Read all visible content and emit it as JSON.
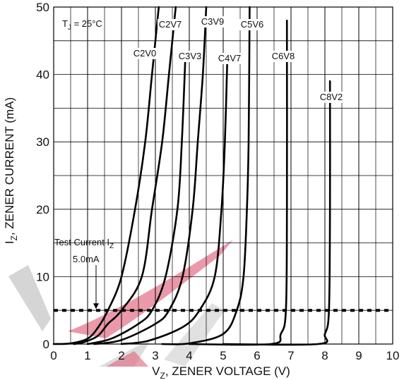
{
  "chart_data": {
    "type": "line",
    "xlabel": "V",
    "xlabel_sub": "Z",
    "xlabel_rest": ", ZENER VOLTAGE (V)",
    "ylabel": "I",
    "ylabel_sub": "Z",
    "ylabel_rest": ", ZENER CURRENT (mA)",
    "xlim": [
      0,
      10
    ],
    "ylim": [
      0,
      50
    ],
    "x_ticks": [
      "0",
      "1",
      "2",
      "3",
      "4",
      "5",
      "6",
      "7",
      "8",
      "9",
      "10"
    ],
    "y_ticks": [
      "0",
      "10",
      "20",
      "30",
      "40",
      "50"
    ],
    "minor_x_step": 0.5,
    "minor_y_step": 5,
    "grid": true,
    "condition": {
      "main": "T",
      "sub": "J",
      "rest": " = 25°C"
    },
    "test_current": {
      "line1_main": "Test Current I",
      "line1_sub": "Z",
      "line2": "5.0mA",
      "value": 5.0
    },
    "series": [
      {
        "name": "C2V0",
        "x": [
          0.0,
          0.5,
          1.0,
          1.3,
          1.6,
          2.0,
          2.4,
          2.7,
          2.9,
          3.1
        ],
        "y": [
          0,
          0.1,
          0.8,
          2.4,
          5.0,
          10,
          20,
          30,
          40,
          50
        ]
      },
      {
        "name": "C2V7",
        "x": [
          0.6,
          0.9,
          1.3,
          1.6,
          2.0,
          2.6,
          2.9,
          3.2,
          3.4,
          3.6
        ],
        "y": [
          0,
          0.3,
          1.2,
          3.0,
          5.0,
          10,
          20,
          30,
          40,
          50
        ]
      },
      {
        "name": "C3V3",
        "x": [
          1.0,
          1.7,
          2.5,
          2.9,
          3.3,
          3.65,
          3.78,
          3.88
        ],
        "y": [
          0,
          0.8,
          3.0,
          5.0,
          10,
          20,
          30,
          42
        ]
      },
      {
        "name": "C3V9",
        "x": [
          1.2,
          2.0,
          3.0,
          3.4,
          3.8,
          4.1,
          4.25,
          4.4,
          4.5
        ],
        "y": [
          0,
          0.6,
          3.0,
          5.0,
          10,
          20,
          30,
          40,
          50
        ]
      },
      {
        "name": "C4V7",
        "x": [
          2.0,
          2.8,
          3.8,
          4.3,
          4.75,
          4.95,
          5.05,
          5.12
        ],
        "y": [
          0,
          0.5,
          2.5,
          5.0,
          10,
          20,
          30,
          42
        ]
      },
      {
        "name": "C5V6",
        "x": [
          3.2,
          4.0,
          5.0,
          5.4,
          5.6,
          5.7,
          5.75,
          5.78
        ],
        "y": [
          0,
          0.1,
          1.5,
          5.0,
          10,
          20,
          30,
          50
        ]
      },
      {
        "name": "C6V8",
        "x": [
          4.0,
          6.4,
          6.7,
          6.85,
          6.88,
          6.88
        ],
        "y": [
          0,
          0,
          1.5,
          5.0,
          20,
          48
        ]
      },
      {
        "name": "C8V2",
        "x": [
          5.0,
          7.8,
          8.0,
          8.12,
          8.15,
          8.15
        ],
        "y": [
          0,
          0,
          1.5,
          5.0,
          20,
          39
        ]
      }
    ],
    "watermark_colors": {
      "gray": "#b3b3b3",
      "pink": "#e0627c"
    }
  }
}
